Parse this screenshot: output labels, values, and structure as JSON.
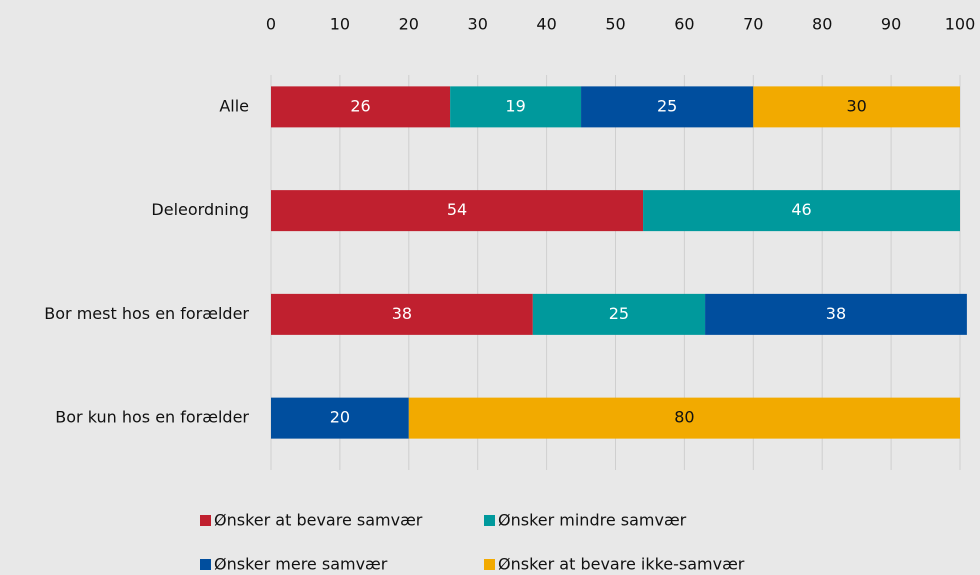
{
  "chart_data": {
    "type": "stacked-bar-horizontal",
    "categories": [
      "Alle",
      "Deleordning",
      "Bor mest hos en forælder",
      "Bor kun hos en forælder"
    ],
    "series": [
      {
        "name": "Ønsker at bevare samvær",
        "color": "#c0202f",
        "values": [
          26,
          54,
          38,
          null
        ]
      },
      {
        "name": "Ønsker mindre samvær",
        "color": "#00999c",
        "values": [
          19,
          46,
          25,
          null
        ]
      },
      {
        "name": "Ønsker mere samvær",
        "color": "#004e9e",
        "values": [
          25,
          null,
          38,
          20
        ]
      },
      {
        "name": "Ønsker at bevare ikke-samvær",
        "color": "#f2aa00",
        "values": [
          30,
          null,
          null,
          80
        ]
      }
    ],
    "xlim": [
      0,
      100
    ],
    "xticks": [
      0,
      10,
      20,
      30,
      40,
      50,
      60,
      70,
      80,
      90,
      100
    ],
    "grid": true
  }
}
